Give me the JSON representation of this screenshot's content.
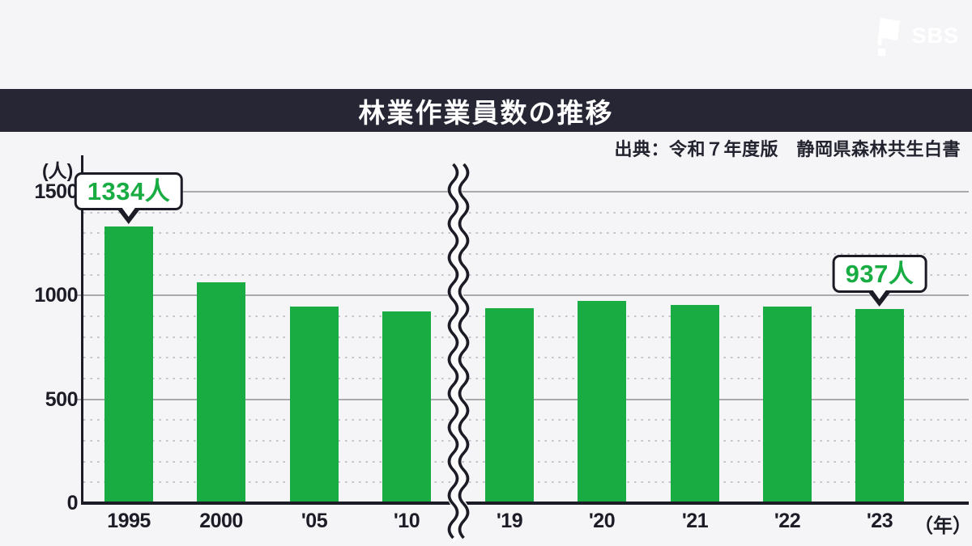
{
  "brand": {
    "logo_text": "SBS"
  },
  "header": {
    "title": "林業作業員数の推移"
  },
  "source": {
    "text": "出典：令和７年度版　静岡県森林共生白書"
  },
  "colors": {
    "bar_green": "#18ac42",
    "band_navy": "#262634",
    "axis_ink": "#1c1c26",
    "grid_major": "#aaaaae",
    "grid_minor": "#c4c4ca",
    "background": "#f5f5f7"
  },
  "chart_data": {
    "type": "bar",
    "title": "林業作業員数の推移",
    "categories": [
      "1995",
      "2000",
      "'05",
      "'10",
      "'19",
      "'20",
      "'21",
      "'22",
      "'23"
    ],
    "values": [
      1334,
      1065,
      945,
      925,
      940,
      975,
      955,
      945,
      937
    ],
    "ylabel": "(人)",
    "xlabel": "（年）",
    "ylim": [
      0,
      1500
    ],
    "yticks": [
      0,
      500,
      1000,
      1500
    ],
    "minor_grid_step": 100,
    "grid": true,
    "legend": "none",
    "axis_break_after": "'10",
    "bar_color": "#18ac42",
    "annotations": [
      {
        "category": "1995",
        "label": "1334人"
      },
      {
        "category": "'23",
        "label": "937人"
      }
    ]
  }
}
